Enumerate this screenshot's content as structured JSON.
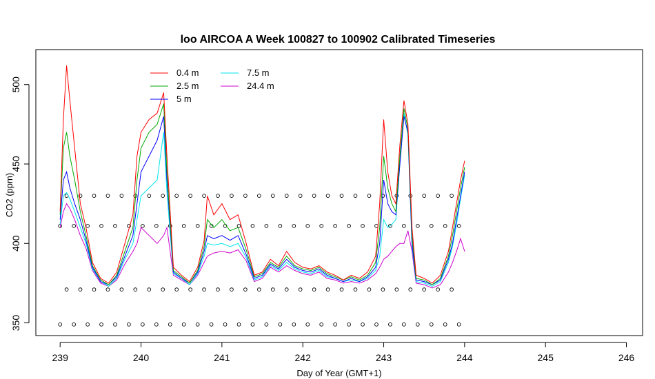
{
  "chart_data": {
    "type": "line",
    "title": "loo AIRCOA A  Week 100827 to 100902  Calibrated Timeseries",
    "xlabel": "Day of Year (GMT+1)",
    "ylabel": "CO2 (ppm)",
    "xlim": [
      238.7,
      246.2
    ],
    "ylim": [
      342,
      522
    ],
    "xticks": [
      239,
      240,
      241,
      242,
      243,
      244,
      245,
      246
    ],
    "yticks": [
      350,
      400,
      450,
      500
    ],
    "grid": false,
    "legend_position": "top-left",
    "series": [
      {
        "name": "0.4 m",
        "color": "#ff0000",
        "x": [
          239.0,
          239.04,
          239.08,
          239.12,
          239.18,
          239.25,
          239.32,
          239.4,
          239.5,
          239.6,
          239.7,
          239.8,
          239.9,
          239.95,
          240.0,
          240.1,
          240.2,
          240.28,
          240.32,
          240.4,
          240.5,
          240.6,
          240.7,
          240.78,
          240.82,
          240.9,
          241.0,
          241.1,
          241.2,
          241.3,
          241.4,
          241.5,
          241.6,
          241.7,
          241.8,
          241.9,
          242.0,
          242.1,
          242.2,
          242.3,
          242.4,
          242.5,
          242.6,
          242.7,
          242.8,
          242.9,
          242.95,
          243.0,
          243.05,
          243.1,
          243.15,
          243.2,
          243.25,
          243.3,
          243.35,
          243.4,
          243.5,
          243.6,
          243.7,
          243.8,
          243.85,
          243.9,
          243.95,
          244.0
        ],
        "y": [
          420,
          478,
          512,
          490,
          460,
          425,
          410,
          388,
          378,
          375,
          382,
          400,
          418,
          455,
          470,
          478,
          482,
          495,
          455,
          385,
          380,
          376,
          385,
          402,
          430,
          418,
          425,
          415,
          418,
          400,
          380,
          382,
          390,
          386,
          395,
          388,
          385,
          384,
          386,
          382,
          380,
          377,
          380,
          378,
          382,
          392,
          425,
          478,
          445,
          430,
          425,
          462,
          490,
          475,
          410,
          380,
          378,
          375,
          380,
          395,
          410,
          425,
          440,
          452
        ]
      },
      {
        "name": "2.5 m",
        "color": "#00aa00",
        "x": [
          239.0,
          239.04,
          239.08,
          239.12,
          239.18,
          239.25,
          239.32,
          239.4,
          239.5,
          239.6,
          239.7,
          239.8,
          239.9,
          239.95,
          240.0,
          240.1,
          240.2,
          240.28,
          240.32,
          240.4,
          240.5,
          240.6,
          240.7,
          240.78,
          240.82,
          240.9,
          241.0,
          241.1,
          241.2,
          241.3,
          241.4,
          241.5,
          241.6,
          241.7,
          241.8,
          241.9,
          242.0,
          242.1,
          242.2,
          242.3,
          242.4,
          242.5,
          242.6,
          242.7,
          242.8,
          242.9,
          242.95,
          243.0,
          243.05,
          243.1,
          243.15,
          243.2,
          243.25,
          243.3,
          243.35,
          243.4,
          243.5,
          243.6,
          243.7,
          243.8,
          243.85,
          243.9,
          243.95,
          244.0
        ],
        "y": [
          418,
          460,
          470,
          455,
          440,
          420,
          405,
          386,
          377,
          374,
          380,
          395,
          410,
          440,
          460,
          470,
          475,
          488,
          445,
          383,
          379,
          375,
          383,
          398,
          415,
          410,
          415,
          408,
          410,
          396,
          379,
          381,
          388,
          385,
          392,
          386,
          384,
          383,
          385,
          381,
          379,
          377,
          379,
          377,
          380,
          388,
          410,
          455,
          435,
          425,
          420,
          455,
          485,
          472,
          405,
          378,
          377,
          374,
          378,
          392,
          405,
          420,
          435,
          448
        ]
      },
      {
        "name": "5 m",
        "color": "#0000ff",
        "x": [
          239.0,
          239.04,
          239.08,
          239.12,
          239.18,
          239.25,
          239.32,
          239.4,
          239.5,
          239.6,
          239.7,
          239.8,
          239.9,
          239.95,
          240.0,
          240.1,
          240.2,
          240.28,
          240.32,
          240.4,
          240.5,
          240.6,
          240.7,
          240.78,
          240.82,
          240.9,
          241.0,
          241.1,
          241.2,
          241.3,
          241.4,
          241.5,
          241.6,
          241.7,
          241.8,
          241.9,
          242.0,
          242.1,
          242.2,
          242.3,
          242.4,
          242.5,
          242.6,
          242.7,
          242.8,
          242.9,
          242.95,
          243.0,
          243.05,
          243.1,
          243.15,
          243.2,
          243.25,
          243.3,
          243.35,
          243.4,
          243.5,
          243.6,
          243.7,
          243.8,
          243.85,
          243.9,
          243.95,
          244.0
        ],
        "y": [
          415,
          440,
          445,
          435,
          425,
          415,
          402,
          385,
          376,
          374,
          379,
          392,
          405,
          425,
          445,
          455,
          465,
          480,
          440,
          382,
          378,
          375,
          382,
          395,
          405,
          403,
          405,
          402,
          405,
          393,
          378,
          380,
          387,
          384,
          390,
          385,
          383,
          382,
          384,
          380,
          378,
          376,
          378,
          376,
          379,
          385,
          400,
          440,
          425,
          420,
          418,
          450,
          480,
          470,
          400,
          377,
          376,
          374,
          377,
          390,
          400,
          415,
          430,
          445
        ]
      },
      {
        "name": "7.5 m",
        "color": "#00e5ee",
        "x": [
          239.0,
          239.04,
          239.08,
          239.12,
          239.18,
          239.25,
          239.32,
          239.4,
          239.5,
          239.6,
          239.7,
          239.8,
          239.9,
          239.95,
          240.0,
          240.1,
          240.2,
          240.28,
          240.32,
          240.4,
          240.5,
          240.6,
          240.7,
          240.78,
          240.82,
          240.9,
          241.0,
          241.1,
          241.2,
          241.3,
          241.4,
          241.5,
          241.6,
          241.7,
          241.8,
          241.9,
          242.0,
          242.1,
          242.2,
          242.3,
          242.4,
          242.5,
          242.6,
          242.7,
          242.8,
          242.9,
          242.95,
          243.0,
          243.05,
          243.1,
          243.15,
          243.2,
          243.25,
          243.3,
          243.35,
          243.4,
          243.5,
          243.6,
          243.7,
          243.8,
          243.85,
          243.9,
          243.95,
          244.0
        ],
        "y": [
          412,
          430,
          432,
          428,
          420,
          410,
          400,
          384,
          376,
          373,
          378,
          390,
          400,
          415,
          430,
          435,
          440,
          470,
          432,
          381,
          378,
          374,
          381,
          392,
          400,
          399,
          400,
          398,
          400,
          391,
          377,
          379,
          386,
          383,
          388,
          384,
          382,
          381,
          383,
          379,
          378,
          376,
          377,
          376,
          378,
          383,
          392,
          415,
          410,
          412,
          415,
          450,
          482,
          468,
          398,
          376,
          375,
          373,
          376,
          388,
          398,
          412,
          428,
          443
        ]
      },
      {
        "name": "24.4 m",
        "color": "#cc00cc",
        "x": [
          239.0,
          239.04,
          239.08,
          239.12,
          239.18,
          239.25,
          239.32,
          239.4,
          239.5,
          239.6,
          239.7,
          239.8,
          239.9,
          239.95,
          240.0,
          240.1,
          240.2,
          240.28,
          240.32,
          240.4,
          240.5,
          240.6,
          240.7,
          240.78,
          240.82,
          240.9,
          241.0,
          241.1,
          241.2,
          241.3,
          241.4,
          241.5,
          241.6,
          241.7,
          241.8,
          241.9,
          242.0,
          242.1,
          242.2,
          242.3,
          242.4,
          242.5,
          242.6,
          242.7,
          242.8,
          242.9,
          242.95,
          243.0,
          243.05,
          243.1,
          243.15,
          243.2,
          243.25,
          243.3,
          243.35,
          243.4,
          243.5,
          243.6,
          243.7,
          243.8,
          243.85,
          243.9,
          243.95,
          244.0
        ],
        "y": [
          410,
          420,
          425,
          422,
          415,
          405,
          397,
          383,
          375,
          373,
          377,
          387,
          395,
          400,
          410,
          405,
          400,
          405,
          410,
          380,
          377,
          374,
          380,
          388,
          392,
          394,
          395,
          394,
          396,
          389,
          376,
          378,
          385,
          382,
          386,
          383,
          381,
          380,
          382,
          378,
          377,
          375,
          376,
          375,
          377,
          381,
          385,
          390,
          392,
          395,
          398,
          400,
          400,
          408,
          395,
          375,
          374,
          372,
          374,
          382,
          388,
          395,
          403,
          395
        ]
      },
      {
        "name": "",
        "color": "#000000",
        "marker": "circle",
        "x": [
          239.0,
          239.13,
          239.26,
          239.39,
          239.52,
          239.65,
          239.78,
          239.91,
          240.04,
          240.17,
          240.3,
          240.43,
          240.56,
          240.69,
          240.82,
          240.95,
          241.08,
          241.21,
          241.34,
          241.47,
          241.6,
          241.73,
          241.86,
          241.99,
          242.12,
          242.25,
          242.38,
          242.51,
          242.64,
          242.77,
          242.9,
          243.03,
          243.16,
          243.29,
          243.42,
          243.55,
          243.68,
          243.81,
          243.94
        ],
        "y": [
          349,
          349,
          349,
          349,
          349,
          349,
          349,
          349,
          349,
          349,
          349,
          349,
          349,
          349,
          349,
          349,
          349,
          349,
          349,
          349,
          349,
          349,
          349,
          349,
          349,
          349,
          349,
          349,
          349,
          349,
          349,
          349,
          349,
          349,
          349,
          349,
          349,
          349,
          349
        ]
      }
    ],
    "marker_rows": [
      349,
      371,
      411,
      430
    ]
  }
}
